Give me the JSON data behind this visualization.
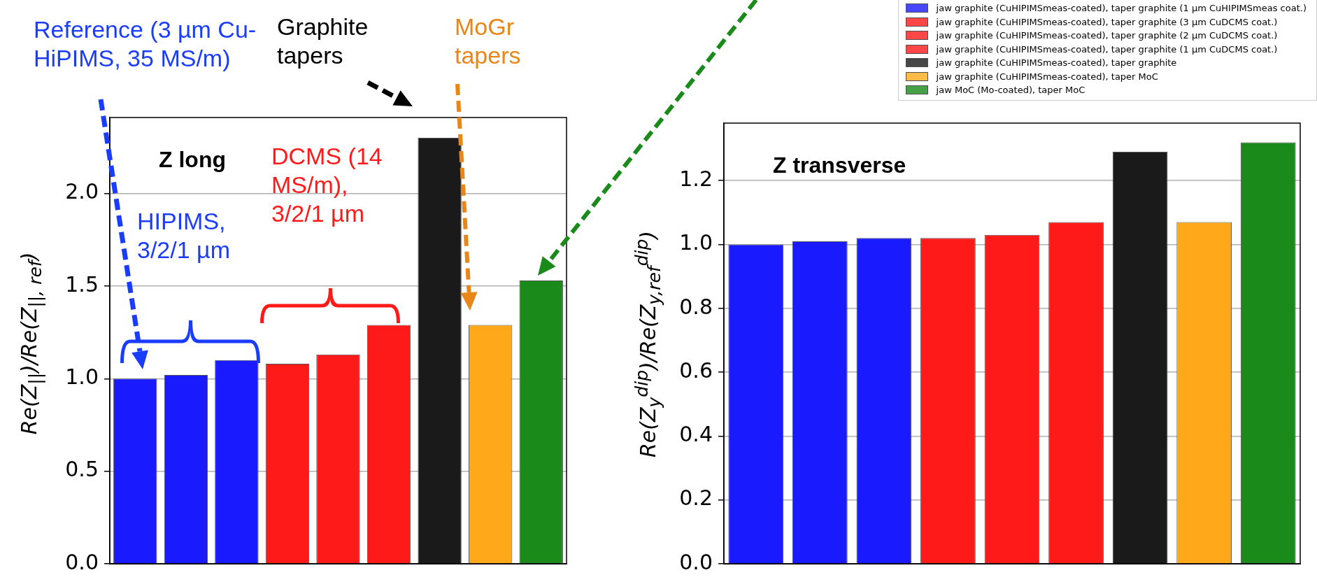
{
  "chart_data": [
    {
      "type": "bar",
      "title": "Z long",
      "ylabel": "Re(Z$_{||}$)/Re(Z$_{||, ref}$)",
      "categories": [
        null,
        null,
        null,
        null,
        null,
        null,
        null,
        null,
        null
      ],
      "values": [
        1.0,
        1.02,
        1.1,
        1.08,
        1.13,
        1.29,
        2.3,
        1.29,
        1.53
      ],
      "colors": [
        "#1a1aff",
        "#1a1aff",
        "#1a1aff",
        "#ff1a1a",
        "#ff1a1a",
        "#ff1a1a",
        "#1a1a1a",
        "#ffa91a",
        "#1a8a1a"
      ],
      "ylim": [
        0,
        2.41
      ],
      "yticks": [
        {
          "value": 0,
          "label": "0.0"
        },
        {
          "value": 0.5,
          "label": "0.5"
        },
        {
          "value": 1,
          "label": "1.0"
        },
        {
          "value": 1.5,
          "label": "1.5"
        },
        {
          "value": 2,
          "label": "2.0"
        }
      ],
      "grid": "y",
      "annotations": [
        "Reference (3 µm Cu-HiPIMS, 35 MS/m)",
        "Graphite tapers",
        "MoGr tapers",
        "HIPIMS, 3/2/1 µm",
        "DCMS (14 MS/m), 3/2/1 µm"
      ]
    },
    {
      "type": "bar",
      "title": "Z transverse",
      "ylabel": "Re(Z$_{y}$$^{dip}$)/Re(Z$_{y,ref}$$^{dip}$)",
      "categories": [
        null,
        null,
        null,
        null,
        null,
        null,
        null,
        null,
        null
      ],
      "series": [
        {
          "color": "#1a1aff",
          "values": [
            1.0,
            null,
            null,
            null,
            null,
            null,
            null,
            null,
            null
          ]
        },
        {
          "color": "#1a1aff",
          "values": [
            null,
            1.01,
            null,
            null,
            null,
            null,
            null,
            null,
            null
          ]
        },
        {
          "name": "jaw graphite (CuHIPIMSmeas-coated), taper graphite (1 μm CuHIPIMSmeas coat.)",
          "color": "#1a1aff",
          "values": [
            null,
            null,
            1.02,
            null,
            null,
            null,
            null,
            null,
            null
          ]
        },
        {
          "name": "jaw graphite (CuHIPIMSmeas-coated), taper graphite (3 μm CuDCMS coat.)",
          "color": "#ff1a1a",
          "values": [
            null,
            null,
            null,
            1.02,
            null,
            null,
            null,
            null,
            null
          ]
        },
        {
          "name": "jaw graphite (CuHIPIMSmeas-coated), taper graphite (2 μm CuDCMS coat.)",
          "color": "#ff1a1a",
          "values": [
            null,
            null,
            null,
            null,
            1.03,
            null,
            null,
            null,
            null
          ]
        },
        {
          "name": "jaw graphite (CuHIPIMSmeas-coated), taper graphite (1 μm CuDCMS coat.)",
          "color": "#ff1a1a",
          "values": [
            null,
            null,
            null,
            null,
            null,
            1.07,
            null,
            null,
            null
          ]
        },
        {
          "name": "jaw graphite (CuHIPIMSmeas-coated), taper graphite",
          "color": "#1a1a1a",
          "values": [
            null,
            null,
            null,
            null,
            null,
            null,
            1.29,
            null,
            null
          ]
        },
        {
          "name": "jaw graphite (CuHIPIMSmeas-coated), taper MoC",
          "color": "#ffa91a",
          "values": [
            null,
            null,
            null,
            null,
            null,
            null,
            null,
            1.07,
            null
          ]
        },
        {
          "name": "jaw MoC (Mo-coated), taper MoC",
          "color": "#1a8a1a",
          "values": [
            null,
            null,
            null,
            null,
            null,
            null,
            null,
            null,
            1.32
          ]
        }
      ],
      "ylim": [
        0,
        1.38
      ],
      "yticks": [
        {
          "value": 0,
          "label": "0.0"
        },
        {
          "value": 0.2,
          "label": "0.2"
        },
        {
          "value": 0.4,
          "label": "0.4"
        },
        {
          "value": 0.6,
          "label": "0.6"
        },
        {
          "value": 0.8,
          "label": "0.8"
        },
        {
          "value": 1,
          "label": "1.0"
        },
        {
          "value": 1.2,
          "label": "1.2"
        }
      ],
      "grid": "y",
      "legend": "top right"
    }
  ]
}
